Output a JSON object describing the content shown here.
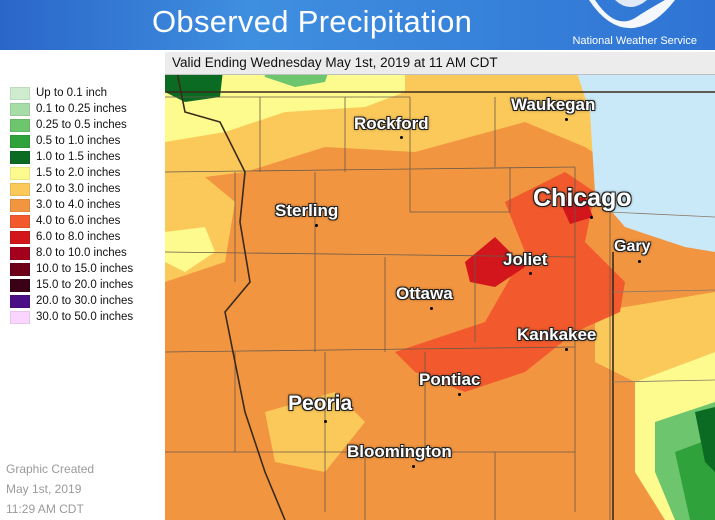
{
  "header": {
    "title": "Observed Precipitation",
    "agency": "National Weather Service",
    "colors": {
      "band": "#2f74d4"
    }
  },
  "subtitle": "Valid Ending Wednesday May 1st, 2019 at 11 AM CDT",
  "legend": [
    {
      "label": "Up to 0.1 inch",
      "color": "#cfeccf"
    },
    {
      "label": "0.1 to 0.25 inches",
      "color": "#a6dca6"
    },
    {
      "label": "0.25 to 0.5 inches",
      "color": "#6dc56d"
    },
    {
      "label": "0.5 to 1.0 inches",
      "color": "#30a23c"
    },
    {
      "label": "1.0 to 1.5 inches",
      "color": "#0b6b23"
    },
    {
      "label": "1.5 to 2.0 inches",
      "color": "#fdfb8d"
    },
    {
      "label": "2.0 to 3.0 inches",
      "color": "#fbc95a"
    },
    {
      "label": "3.0 to 4.0 inches",
      "color": "#f29540"
    },
    {
      "label": "4.0 to 6.0 inches",
      "color": "#f25a2d"
    },
    {
      "label": "6.0 to 8.0 inches",
      "color": "#d2161c"
    },
    {
      "label": "8.0 to 10.0 inches",
      "color": "#a4001e"
    },
    {
      "label": "10.0 to 15.0 inches",
      "color": "#6d0018"
    },
    {
      "label": "15.0 to 20.0 inches",
      "color": "#3a0016"
    },
    {
      "label": "20.0 to 30.0 inches",
      "color": "#4a0f85"
    },
    {
      "label": "30.0 to 50.0 inches",
      "color": "#fad5ff"
    }
  ],
  "credit": {
    "line1": "Graphic Created",
    "line2": "May 1st, 2019",
    "line3": "11:29 AM CDT"
  },
  "cities": [
    {
      "name": "Rockford",
      "size": "medium"
    },
    {
      "name": "Waukegan",
      "size": "medium"
    },
    {
      "name": "Chicago",
      "size": "large"
    },
    {
      "name": "Sterling",
      "size": "medium"
    },
    {
      "name": "Gary",
      "size": "small"
    },
    {
      "name": "Joliet",
      "size": "medium"
    },
    {
      "name": "Ottawa",
      "size": "medium"
    },
    {
      "name": "Kankakee",
      "size": "medium"
    },
    {
      "name": "Pontiac",
      "size": "medium"
    },
    {
      "name": "Peoria",
      "size": "large"
    },
    {
      "name": "Bloomington",
      "size": "medium"
    }
  ],
  "map_colors": {
    "lake": "#c9e9f8",
    "county_lines": "#6b5a4a"
  }
}
